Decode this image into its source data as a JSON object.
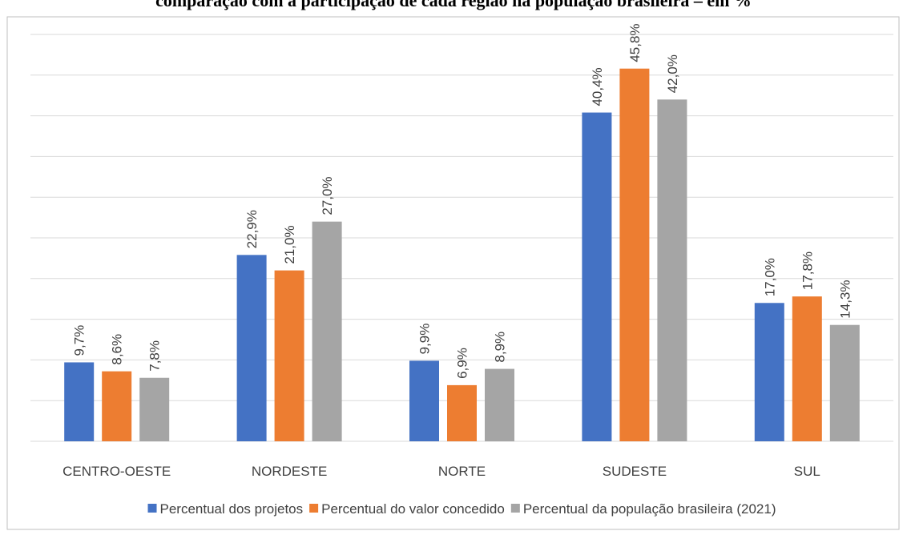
{
  "chart_data": {
    "type": "bar",
    "title": "comparação com a participação de cada região na população brasileira – em %",
    "categories": [
      "CENTRO-OESTE",
      "NORDESTE",
      "NORTE",
      "SUDESTE",
      "SUL"
    ],
    "series": [
      {
        "name": "Percentual dos projetos",
        "color": "#4472c4",
        "values": [
          9.7,
          22.9,
          9.9,
          40.4,
          17.0
        ],
        "value_labels": [
          "9,7%",
          "22,9%",
          "9,9%",
          "40,4%",
          "17,0%"
        ]
      },
      {
        "name": "Percentual do valor concedido",
        "color": "#ed7d31",
        "values": [
          8.6,
          21.0,
          6.9,
          45.8,
          17.8
        ],
        "value_labels": [
          "8,6%",
          "21,0%",
          "6,9%",
          "45,8%",
          "17,8%"
        ]
      },
      {
        "name": "Percentual da população brasileira (2021)",
        "color": "#a5a5a5",
        "values": [
          7.8,
          27.0,
          8.9,
          42.0,
          14.3
        ],
        "value_labels": [
          "7,8%",
          "27,0%",
          "8,9%",
          "42,0%",
          "14,3%"
        ]
      }
    ],
    "ylim": [
      0,
      50
    ],
    "yticks": [
      0,
      5,
      10,
      15,
      20,
      25,
      30,
      35,
      40,
      45,
      50
    ],
    "grid": true,
    "legend": "bottom"
  }
}
